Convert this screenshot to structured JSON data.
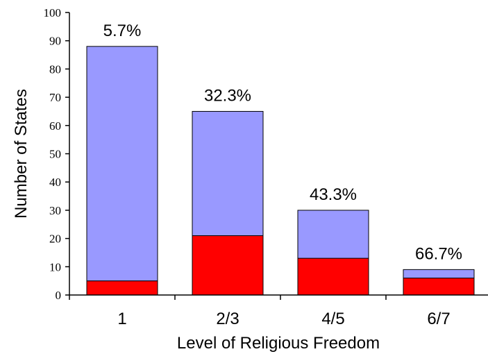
{
  "chart_data": {
    "type": "bar",
    "stacked": true,
    "categories": [
      "1",
      "2/3",
      "4/5",
      "6/7"
    ],
    "series": [
      {
        "values": [
          5,
          21,
          13,
          6
        ],
        "color": "#ff0000"
      },
      {
        "values": [
          83,
          44,
          17,
          3
        ],
        "color": "#9999ff"
      }
    ],
    "totals": [
      88,
      65,
      30,
      9
    ],
    "data_labels": [
      "5.7%",
      "32.3%",
      "43.3%",
      "66.7%"
    ],
    "xlabel": "Level of Religious Freedom",
    "ylabel": "Number of States",
    "ylim": [
      0,
      100
    ],
    "yticks": [
      "0",
      "10",
      "20",
      "30",
      "40",
      "50",
      "60",
      "70",
      "80",
      "90",
      "100"
    ],
    "grid": false,
    "legend": "none"
  }
}
